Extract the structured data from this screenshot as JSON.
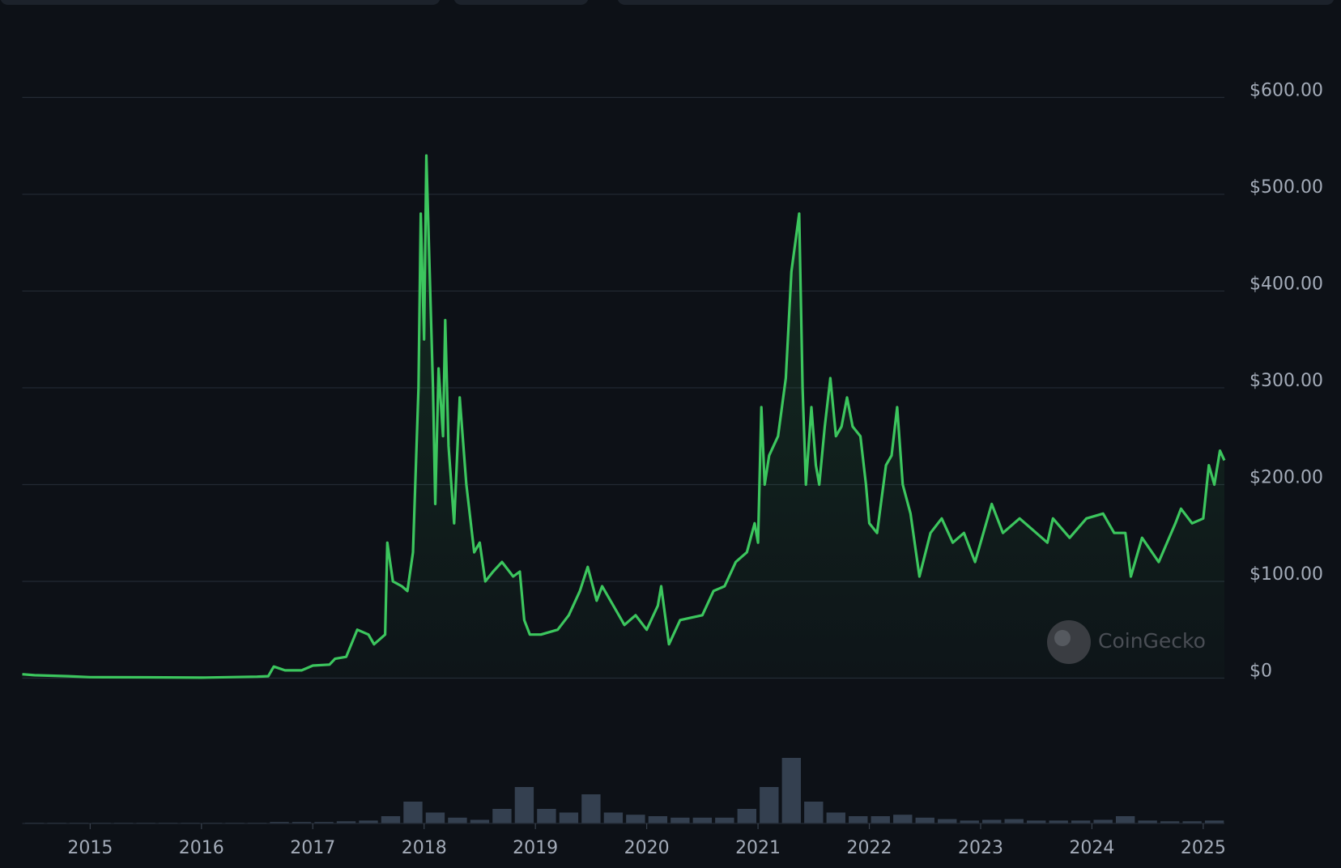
{
  "chart_data": [
    {
      "type": "line",
      "color": "#3cc65e",
      "watermark": "CoinGecko",
      "xlim": [
        2014.39,
        2025.19
      ],
      "xticks": [
        2015,
        2016,
        2017,
        2018,
        2019,
        2020,
        2021,
        2022,
        2023,
        2024,
        2025
      ],
      "ylim": [
        0,
        600
      ],
      "yticks": [
        {
          "value": 0,
          "label": "$0"
        },
        {
          "value": 100,
          "label": "$100.00"
        },
        {
          "value": 200,
          "label": "$200.00"
        },
        {
          "value": 300,
          "label": "$300.00"
        },
        {
          "value": 400,
          "label": "$400.00"
        },
        {
          "value": 500,
          "label": "$500.00"
        },
        {
          "value": 600,
          "label": "$600.00"
        }
      ],
      "grid": true,
      "x": [
        2014.39,
        2014.5,
        2014.8,
        2015,
        2015.5,
        2016,
        2016.5,
        2016.6,
        2016.65,
        2016.75,
        2016.9,
        2017.0,
        2017.15,
        2017.2,
        2017.3,
        2017.4,
        2017.5,
        2017.55,
        2017.65,
        2017.67,
        2017.72,
        2017.8,
        2017.85,
        2017.9,
        2017.95,
        2017.97,
        2018.0,
        2018.02,
        2018.05,
        2018.08,
        2018.1,
        2018.13,
        2018.17,
        2018.19,
        2018.22,
        2018.27,
        2018.32,
        2018.38,
        2018.45,
        2018.5,
        2018.55,
        2018.62,
        2018.7,
        2018.8,
        2018.86,
        2018.9,
        2018.95,
        2019.05,
        2019.2,
        2019.3,
        2019.4,
        2019.47,
        2019.55,
        2019.6,
        2019.7,
        2019.8,
        2019.9,
        2020.0,
        2020.1,
        2020.13,
        2020.2,
        2020.3,
        2020.5,
        2020.6,
        2020.7,
        2020.8,
        2020.9,
        2020.97,
        2021.0,
        2021.03,
        2021.06,
        2021.1,
        2021.18,
        2021.25,
        2021.3,
        2021.37,
        2021.4,
        2021.43,
        2021.48,
        2021.52,
        2021.55,
        2021.6,
        2021.65,
        2021.7,
        2021.75,
        2021.8,
        2021.85,
        2021.92,
        2021.97,
        2022.0,
        2022.07,
        2022.15,
        2022.2,
        2022.25,
        2022.3,
        2022.37,
        2022.45,
        2022.55,
        2022.65,
        2022.75,
        2022.85,
        2022.95,
        2023.1,
        2023.2,
        2023.35,
        2023.5,
        2023.6,
        2023.65,
        2023.8,
        2023.95,
        2024.1,
        2024.2,
        2024.3,
        2024.35,
        2024.45,
        2024.6,
        2024.75,
        2024.8,
        2024.9,
        2025.0,
        2025.05,
        2025.1,
        2025.15,
        2025.19
      ],
      "values": [
        4,
        3,
        2,
        1,
        0.8,
        0.5,
        1.5,
        2,
        12,
        8,
        8,
        13,
        14,
        20,
        22,
        50,
        45,
        35,
        45,
        140,
        100,
        95,
        90,
        130,
        300,
        480,
        350,
        540,
        420,
        300,
        180,
        320,
        250,
        370,
        240,
        160,
        290,
        200,
        130,
        140,
        100,
        110,
        120,
        105,
        110,
        60,
        45,
        45,
        50,
        65,
        90,
        115,
        80,
        95,
        75,
        55,
        65,
        50,
        75,
        95,
        35,
        60,
        65,
        90,
        95,
        120,
        130,
        160,
        140,
        280,
        200,
        230,
        250,
        310,
        420,
        480,
        300,
        200,
        280,
        220,
        200,
        260,
        310,
        250,
        260,
        290,
        260,
        250,
        200,
        160,
        150,
        220,
        230,
        280,
        200,
        170,
        105,
        150,
        165,
        140,
        150,
        120,
        180,
        150,
        165,
        150,
        140,
        165,
        145,
        165,
        170,
        150,
        150,
        105,
        145,
        120,
        160,
        175,
        160,
        165,
        220,
        200,
        235,
        225
      ]
    },
    {
      "type": "bar",
      "color": "#344050",
      "ylim": [
        0,
        100
      ],
      "x": [
        2014.5,
        2014.7,
        2014.9,
        2015.1,
        2015.3,
        2015.5,
        2015.7,
        2015.9,
        2016.1,
        2016.3,
        2016.5,
        2016.7,
        2016.9,
        2017.1,
        2017.3,
        2017.5,
        2017.7,
        2017.9,
        2018.1,
        2018.3,
        2018.5,
        2018.7,
        2018.9,
        2019.1,
        2019.3,
        2019.5,
        2019.7,
        2019.9,
        2020.1,
        2020.3,
        2020.5,
        2020.7,
        2020.9,
        2021.1,
        2021.3,
        2021.5,
        2021.7,
        2021.9,
        2022.1,
        2022.3,
        2022.5,
        2022.7,
        2022.9,
        2023.1,
        2023.3,
        2023.5,
        2023.7,
        2023.9,
        2024.1,
        2024.3,
        2024.5,
        2024.7,
        2024.9,
        2025.1
      ],
      "values": [
        1,
        1,
        1,
        1,
        1,
        1,
        1,
        1,
        1,
        1,
        1,
        2,
        2,
        2,
        3,
        4,
        10,
        30,
        15,
        8,
        5,
        20,
        50,
        20,
        15,
        40,
        15,
        12,
        10,
        8,
        8,
        8,
        20,
        50,
        90,
        30,
        15,
        10,
        10,
        12,
        8,
        6,
        4,
        5,
        6,
        4,
        4,
        4,
        5,
        10,
        4,
        3,
        3,
        4
      ]
    }
  ]
}
